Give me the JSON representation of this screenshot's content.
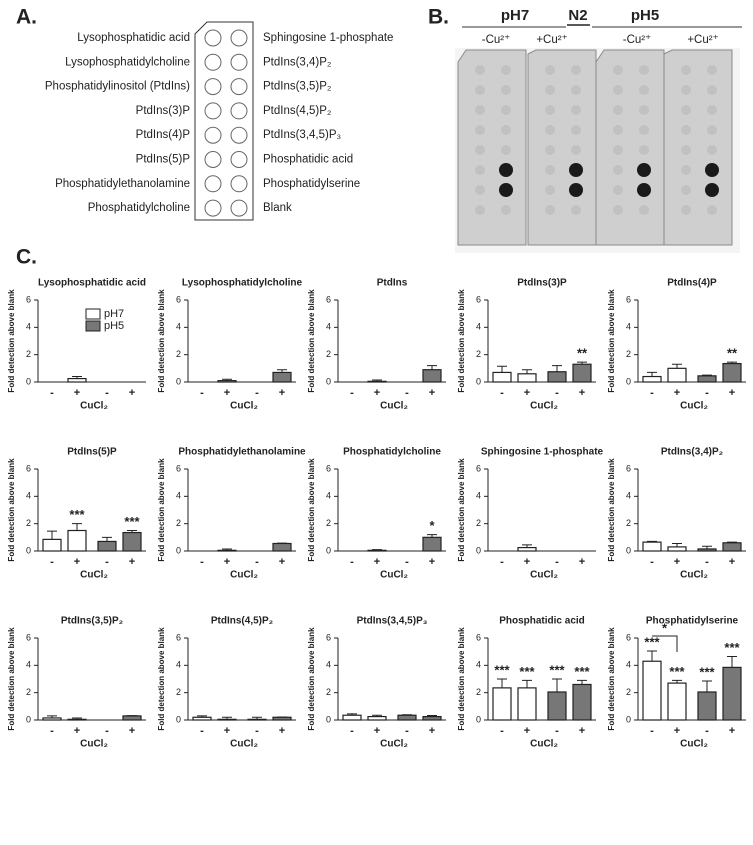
{
  "panel_a": {
    "label": "A.",
    "left_labels": [
      "Lysophosphatidic acid",
      "Lysophosphatidylcholine",
      "Phosphatidylinositol (PtdIns)",
      "PtdIns(3)P",
      "PtdIns(4)P",
      "PtdIns(5)P",
      "Phosphatidylethanolamine",
      "Phosphatidylcholine"
    ],
    "right_labels": [
      "Sphingosine 1-phosphate",
      "PtdIns(3,4)P₂",
      "PtdIns(3,5)P₂",
      "PtdIns(4,5)P₂",
      "PtdIns(3,4,5)P₃",
      "Phosphatidic acid",
      "Phosphatidylserine",
      "Blank"
    ]
  },
  "panel_b": {
    "label": "B.",
    "header": [
      "pH7",
      "N2",
      "pH5"
    ],
    "conditions": [
      "-Cu²⁺",
      "+Cu²⁺",
      "-Cu²⁺",
      "+Cu²⁺"
    ]
  },
  "panel_c": {
    "label": "C."
  },
  "chart_data": [
    {
      "type": "bar",
      "title": "Lysophosphatidic acid",
      "ylabel": "Fold detection above blank",
      "xlabel": "CuCl₂",
      "categories": [
        "-",
        "+",
        "-",
        "+"
      ],
      "ylim": [
        0,
        6
      ],
      "yticks": [
        0,
        2,
        4,
        6
      ],
      "legend": "upper-middle",
      "series": [
        {
          "name": "pH7",
          "color": "#ffffff",
          "values": [
            0,
            0.25,
            null,
            null
          ],
          "errors": [
            0,
            0.15,
            null,
            null
          ]
        },
        {
          "name": "pH5",
          "color": "#777777",
          "values": [
            null,
            null,
            0,
            0
          ],
          "errors": [
            null,
            null,
            0,
            0
          ]
        }
      ]
    },
    {
      "type": "bar",
      "title": "Lysophosphatidylcholine",
      "ylabel": "Fold detection above blank",
      "xlabel": "CuCl₂",
      "categories": [
        "-",
        "+",
        "-",
        "+"
      ],
      "ylim": [
        0,
        6
      ],
      "yticks": [
        0,
        2,
        4,
        6
      ],
      "series": [
        {
          "name": "pH7",
          "color": "#ffffff",
          "values": [
            0,
            0.1,
            null,
            null
          ],
          "errors": [
            0,
            0.1,
            null,
            null
          ]
        },
        {
          "name": "pH5",
          "color": "#777777",
          "values": [
            null,
            null,
            0,
            0.7
          ],
          "errors": [
            null,
            null,
            0,
            0.2
          ]
        }
      ]
    },
    {
      "type": "bar",
      "title": "PtdIns",
      "ylabel": "Fold detection above blank",
      "xlabel": "CuCl₂",
      "categories": [
        "-",
        "+",
        "-",
        "+"
      ],
      "ylim": [
        0,
        6
      ],
      "yticks": [
        0,
        2,
        4,
        6
      ],
      "series": [
        {
          "name": "pH7",
          "color": "#ffffff",
          "values": [
            0,
            0.05,
            null,
            null
          ],
          "errors": [
            0,
            0.1,
            null,
            null
          ]
        },
        {
          "name": "pH5",
          "color": "#777777",
          "values": [
            null,
            null,
            0,
            0.9
          ],
          "errors": [
            null,
            null,
            0,
            0.3
          ]
        }
      ]
    },
    {
      "type": "bar",
      "title": "PtdIns(3)P",
      "ylabel": "Fold detection above blank",
      "xlabel": "CuCl₂",
      "categories": [
        "-",
        "+",
        "-",
        "+"
      ],
      "ylim": [
        0,
        6
      ],
      "yticks": [
        0,
        2,
        4,
        6
      ],
      "series": [
        {
          "name": "pH7",
          "color": "#ffffff",
          "values": [
            0.7,
            0.6,
            null,
            null
          ],
          "errors": [
            0.45,
            0.3,
            null,
            null
          ]
        },
        {
          "name": "pH5",
          "color": "#777777",
          "values": [
            null,
            null,
            0.75,
            1.3
          ],
          "errors": [
            null,
            null,
            0.45,
            0.15
          ],
          "significance": [
            null,
            null,
            null,
            "**"
          ]
        }
      ]
    },
    {
      "type": "bar",
      "title": "PtdIns(4)P",
      "ylabel": "Fold detection above blank",
      "xlabel": "CuCl₂",
      "categories": [
        "-",
        "+",
        "-",
        "+"
      ],
      "ylim": [
        0,
        6
      ],
      "yticks": [
        0,
        2,
        4,
        6
      ],
      "series": [
        {
          "name": "pH7",
          "color": "#ffffff",
          "values": [
            0.4,
            1.0,
            null,
            null
          ],
          "errors": [
            0.3,
            0.3,
            null,
            null
          ]
        },
        {
          "name": "pH5",
          "color": "#777777",
          "values": [
            null,
            null,
            0.45,
            1.35
          ],
          "errors": [
            null,
            null,
            0.05,
            0.1
          ],
          "significance": [
            null,
            null,
            null,
            "**"
          ]
        }
      ]
    },
    {
      "type": "bar",
      "title": "PtdIns(5)P",
      "ylabel": "Fold detection above blank",
      "xlabel": "CuCl₂",
      "categories": [
        "-",
        "+",
        "-",
        "+"
      ],
      "ylim": [
        0,
        6
      ],
      "yticks": [
        0,
        2,
        4,
        6
      ],
      "series": [
        {
          "name": "pH7",
          "color": "#ffffff",
          "values": [
            0.85,
            1.5,
            null,
            null
          ],
          "errors": [
            0.6,
            0.5,
            null,
            null
          ],
          "significance": [
            null,
            "***",
            null,
            null
          ]
        },
        {
          "name": "pH5",
          "color": "#777777",
          "values": [
            null,
            null,
            0.7,
            1.35
          ],
          "errors": [
            null,
            null,
            0.3,
            0.15
          ],
          "significance": [
            null,
            null,
            null,
            "***"
          ]
        }
      ]
    },
    {
      "type": "bar",
      "title": "Phosphatidylethanolamine",
      "ylabel": "Fold detection above blank",
      "xlabel": "CuCl₂",
      "categories": [
        "-",
        "+",
        "-",
        "+"
      ],
      "ylim": [
        0,
        6
      ],
      "yticks": [
        0,
        2,
        4,
        6
      ],
      "series": [
        {
          "name": "pH7",
          "color": "#ffffff",
          "values": [
            0,
            0.05,
            null,
            null
          ],
          "errors": [
            0,
            0.1,
            null,
            null
          ]
        },
        {
          "name": "pH5",
          "color": "#777777",
          "values": [
            null,
            null,
            0,
            0.55
          ],
          "errors": [
            null,
            null,
            0,
            0.03
          ]
        }
      ]
    },
    {
      "type": "bar",
      "title": "Phosphatidylcholine",
      "ylabel": "Fold detection above blank",
      "xlabel": "CuCl₂",
      "categories": [
        "-",
        "+",
        "-",
        "+"
      ],
      "ylim": [
        0,
        6
      ],
      "yticks": [
        0,
        2,
        4,
        6
      ],
      "series": [
        {
          "name": "pH7",
          "color": "#ffffff",
          "values": [
            0,
            0.05,
            null,
            null
          ],
          "errors": [
            0,
            0.05,
            null,
            null
          ]
        },
        {
          "name": "pH5",
          "color": "#777777",
          "values": [
            null,
            null,
            0,
            1.0
          ],
          "errors": [
            null,
            null,
            0,
            0.2
          ],
          "significance": [
            null,
            null,
            null,
            "*"
          ]
        }
      ]
    },
    {
      "type": "bar",
      "title": "Sphingosine 1-phosphate",
      "ylabel": "Fold detection above blank",
      "xlabel": "CuCl₂",
      "categories": [
        "-",
        "+",
        "-",
        "+"
      ],
      "ylim": [
        0,
        6
      ],
      "yticks": [
        0,
        2,
        4,
        6
      ],
      "series": [
        {
          "name": "pH7",
          "color": "#ffffff",
          "values": [
            0,
            0.25,
            null,
            null
          ],
          "errors": [
            0,
            0.2,
            null,
            null
          ]
        },
        {
          "name": "pH5",
          "color": "#777777",
          "values": [
            null,
            null,
            0,
            0
          ],
          "errors": [
            null,
            null,
            0,
            0
          ]
        }
      ]
    },
    {
      "type": "bar",
      "title": "PtdIns(3,4)P₂",
      "ylabel": "Fold detection above blank",
      "xlabel": "CuCl₂",
      "categories": [
        "-",
        "+",
        "-",
        "+"
      ],
      "ylim": [
        0,
        6
      ],
      "yticks": [
        0,
        2,
        4,
        6
      ],
      "series": [
        {
          "name": "pH7",
          "color": "#ffffff",
          "values": [
            0.65,
            0.3,
            null,
            null
          ],
          "errors": [
            0.05,
            0.25,
            null,
            null
          ]
        },
        {
          "name": "pH5",
          "color": "#777777",
          "values": [
            null,
            null,
            0.15,
            0.6
          ],
          "errors": [
            null,
            null,
            0.2,
            0.05
          ]
        }
      ]
    },
    {
      "type": "bar",
      "title": "PtdIns(3,5)P₂",
      "ylabel": "Fold detection above blank",
      "xlabel": "CuCl₂",
      "categories": [
        "-",
        "+",
        "-",
        "+"
      ],
      "ylim": [
        0,
        6
      ],
      "yticks": [
        0,
        2,
        4,
        6
      ],
      "series": [
        {
          "name": "pH7",
          "color": "#ffffff",
          "values": [
            0.15,
            0.05,
            null,
            null
          ],
          "errors": [
            0.15,
            0.1,
            null,
            null
          ]
        },
        {
          "name": "pH5",
          "color": "#777777",
          "values": [
            null,
            null,
            0,
            0.3
          ],
          "errors": [
            null,
            null,
            0,
            0.02
          ]
        }
      ]
    },
    {
      "type": "bar",
      "title": "PtdIns(4,5)P₂",
      "ylabel": "Fold detection above blank",
      "xlabel": "CuCl₂",
      "categories": [
        "-",
        "+",
        "-",
        "+"
      ],
      "ylim": [
        0,
        6
      ],
      "yticks": [
        0,
        2,
        4,
        6
      ],
      "series": [
        {
          "name": "pH7",
          "color": "#ffffff",
          "values": [
            0.2,
            0.05,
            null,
            null
          ],
          "errors": [
            0.1,
            0.15,
            null,
            null
          ]
        },
        {
          "name": "pH5",
          "color": "#777777",
          "values": [
            null,
            null,
            0.05,
            0.2
          ],
          "errors": [
            null,
            null,
            0.15,
            0.02
          ]
        }
      ]
    },
    {
      "type": "bar",
      "title": "PtdIns(3,4,5)P₃",
      "ylabel": "Fold detection above blank",
      "xlabel": "CuCl₂",
      "categories": [
        "-",
        "+",
        "-",
        "+"
      ],
      "ylim": [
        0,
        6
      ],
      "yticks": [
        0,
        2,
        4,
        6
      ],
      "series": [
        {
          "name": "pH7",
          "color": "#ffffff",
          "values": [
            0.35,
            0.25,
            null,
            null
          ],
          "errors": [
            0.1,
            0.1,
            null,
            null
          ]
        },
        {
          "name": "pH5",
          "color": "#777777",
          "values": [
            null,
            null,
            0.35,
            0.25
          ],
          "errors": [
            null,
            null,
            0.03,
            0.08
          ]
        }
      ]
    },
    {
      "type": "bar",
      "title": "Phosphatidic acid",
      "ylabel": "Fold detection above blank",
      "xlabel": "CuCl₂",
      "categories": [
        "-",
        "+",
        "-",
        "+"
      ],
      "ylim": [
        0,
        6
      ],
      "yticks": [
        0,
        2,
        4,
        6
      ],
      "series": [
        {
          "name": "pH7",
          "color": "#ffffff",
          "values": [
            2.35,
            2.35,
            null,
            null
          ],
          "errors": [
            0.65,
            0.55,
            null,
            null
          ],
          "significance": [
            "***",
            "***",
            null,
            null
          ]
        },
        {
          "name": "pH5",
          "color": "#777777",
          "values": [
            null,
            null,
            2.05,
            2.6
          ],
          "errors": [
            null,
            null,
            0.95,
            0.3
          ],
          "significance": [
            null,
            null,
            "***",
            "***"
          ]
        }
      ]
    },
    {
      "type": "bar",
      "title": "Phosphatidylserine",
      "ylabel": "Fold detection above blank",
      "xlabel": "CuCl₂",
      "categories": [
        "-",
        "+",
        "-",
        "+"
      ],
      "ylim": [
        0,
        6
      ],
      "yticks": [
        0,
        2,
        4,
        6
      ],
      "bracket_label": "*",
      "series": [
        {
          "name": "pH7",
          "color": "#ffffff",
          "values": [
            4.3,
            2.7,
            null,
            null
          ],
          "errors": [
            0.75,
            0.2,
            null,
            null
          ],
          "significance": [
            "***",
            "***",
            null,
            null
          ]
        },
        {
          "name": "pH5",
          "color": "#777777",
          "values": [
            null,
            null,
            2.05,
            3.85
          ],
          "errors": [
            null,
            null,
            0.8,
            0.8
          ],
          "significance": [
            null,
            null,
            "***",
            "***"
          ]
        }
      ]
    }
  ]
}
